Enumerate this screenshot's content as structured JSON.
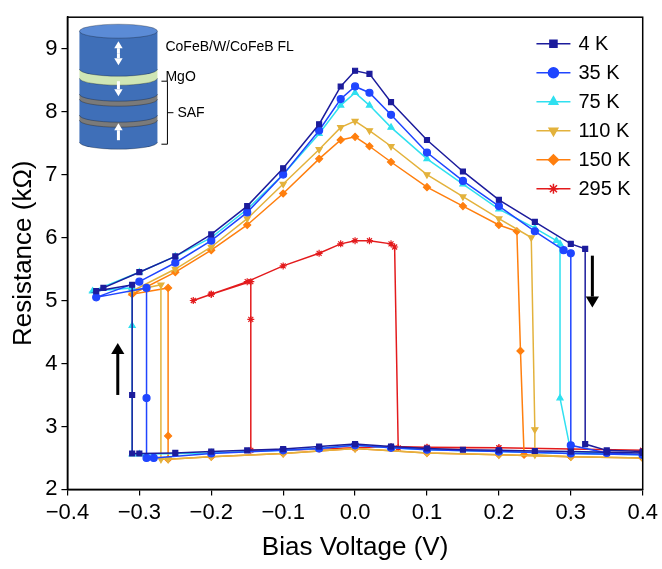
{
  "chart_data": {
    "type": "line",
    "x_label": "Bias Voltage (V)",
    "y_label": "Resistance (kΩ)",
    "xlim": [
      -0.4,
      0.4
    ],
    "xticks": [
      {
        "value": -0.4,
        "label": "−0.4"
      },
      {
        "value": -0.3,
        "label": "−0.3"
      },
      {
        "value": -0.2,
        "label": "−0.2"
      },
      {
        "value": -0.1,
        "label": "−0.1"
      },
      {
        "value": 0,
        "label": "0.0"
      },
      {
        "value": 0.1,
        "label": "0.1"
      },
      {
        "value": 0.2,
        "label": "0.2"
      },
      {
        "value": 0.3,
        "label": "0.3"
      },
      {
        "value": 0.4,
        "label": "0.4"
      }
    ],
    "ylim": [
      2,
      9.5
    ],
    "yticks": [
      2,
      3,
      4,
      5,
      6,
      7,
      8,
      9
    ],
    "grid": false,
    "legend": "upper right",
    "annotations": [
      {
        "text": "CoFeB/W/CoFeB FL"
      },
      {
        "text": "MgO"
      },
      {
        "text": "SAF"
      }
    ],
    "series": [
      {
        "name": "4 K",
        "color": "#1c1c9c",
        "marker": "square",
        "line_style": "solid",
        "x": [
          0.4,
          0.35,
          0.3,
          0.25,
          0.2,
          0.15,
          0.1,
          0.05,
          0.0,
          -0.05,
          -0.1,
          -0.15,
          -0.2,
          -0.25,
          -0.3,
          -0.31,
          -0.31,
          -0.31,
          -0.36,
          -0.35,
          -0.3,
          -0.25,
          -0.2,
          -0.15,
          -0.1,
          -0.05,
          -0.02,
          0.0,
          0.02,
          0.05,
          0.1,
          0.15,
          0.2,
          0.25,
          0.3,
          0.32,
          0.32,
          0.35,
          0.4
        ],
        "values": [
          2.58,
          2.59,
          2.6,
          2.61,
          2.62,
          2.63,
          2.65,
          2.68,
          2.72,
          2.68,
          2.64,
          2.62,
          2.6,
          2.58,
          2.57,
          2.57,
          3.5,
          5.25,
          5.15,
          5.2,
          5.45,
          5.7,
          6.05,
          6.5,
          7.1,
          7.8,
          8.4,
          8.65,
          8.6,
          8.15,
          7.55,
          7.05,
          6.6,
          6.25,
          5.9,
          5.82,
          2.72,
          2.62,
          2.6
        ]
      },
      {
        "name": "35 K",
        "color": "#1f45ff",
        "marker": "circle",
        "line_style": "solid",
        "x": [
          0.4,
          0.3,
          0.2,
          0.1,
          0.05,
          0.0,
          -0.05,
          -0.1,
          -0.2,
          -0.28,
          -0.29,
          -0.29,
          -0.29,
          -0.36,
          -0.3,
          -0.25,
          -0.2,
          -0.15,
          -0.1,
          -0.05,
          -0.02,
          0.0,
          0.02,
          0.05,
          0.1,
          0.15,
          0.2,
          0.25,
          0.29,
          0.3,
          0.3,
          0.35,
          0.4
        ],
        "values": [
          2.55,
          2.57,
          2.6,
          2.63,
          2.66,
          2.7,
          2.65,
          2.62,
          2.57,
          2.5,
          2.5,
          3.45,
          5.2,
          5.05,
          5.3,
          5.6,
          5.95,
          6.4,
          7.0,
          7.7,
          8.2,
          8.4,
          8.3,
          7.95,
          7.35,
          6.9,
          6.5,
          6.1,
          5.8,
          5.75,
          2.7,
          2.58,
          2.55
        ]
      },
      {
        "name": "75 K",
        "color": "#2fe0f0",
        "marker": "triangle-up",
        "line_style": "solid",
        "x": [
          0.4,
          0.3,
          0.2,
          0.1,
          0.05,
          0.0,
          -0.05,
          -0.1,
          -0.2,
          -0.3,
          -0.31,
          -0.31,
          -0.31,
          -0.365,
          -0.3,
          -0.25,
          -0.2,
          -0.15,
          -0.1,
          -0.05,
          -0.02,
          0.0,
          0.02,
          0.05,
          0.1,
          0.15,
          0.2,
          0.25,
          0.28,
          0.285,
          0.285,
          0.3,
          0.4
        ],
        "values": [
          2.55,
          2.57,
          2.6,
          2.63,
          2.66,
          2.7,
          2.65,
          2.62,
          2.58,
          2.56,
          2.56,
          4.6,
          5.2,
          5.15,
          5.45,
          5.7,
          6.0,
          6.45,
          7.0,
          7.65,
          8.1,
          8.3,
          8.1,
          7.75,
          7.25,
          6.85,
          6.45,
          6.15,
          5.95,
          5.9,
          3.45,
          2.6,
          2.55
        ]
      },
      {
        "name": "110 K",
        "color": "#e3b23c",
        "marker": "triangle-down",
        "line_style": "solid",
        "x": [
          0.4,
          0.3,
          0.2,
          0.1,
          0.0,
          -0.1,
          -0.2,
          -0.26,
          -0.27,
          -0.27,
          -0.31,
          -0.25,
          -0.2,
          -0.15,
          -0.1,
          -0.05,
          -0.02,
          0.0,
          0.02,
          0.05,
          0.1,
          0.15,
          0.2,
          0.245,
          0.25,
          0.25,
          0.3,
          0.4
        ],
        "values": [
          2.5,
          2.52,
          2.55,
          2.58,
          2.65,
          2.57,
          2.52,
          2.48,
          2.48,
          5.25,
          5.15,
          5.5,
          5.85,
          6.3,
          6.85,
          7.4,
          7.75,
          7.85,
          7.7,
          7.45,
          7.0,
          6.65,
          6.3,
          6.0,
          2.95,
          2.55,
          2.52,
          2.5
        ]
      },
      {
        "name": "150 K",
        "color": "#ff7f0e",
        "marker": "diamond",
        "line_style": "solid",
        "x": [
          0.4,
          0.3,
          0.2,
          0.1,
          0.0,
          -0.1,
          -0.2,
          -0.26,
          -0.26,
          -0.26,
          -0.31,
          -0.25,
          -0.2,
          -0.15,
          -0.1,
          -0.05,
          -0.02,
          0.0,
          0.02,
          0.05,
          0.1,
          0.15,
          0.2,
          0.225,
          0.23,
          0.235,
          0.3,
          0.4
        ],
        "values": [
          2.5,
          2.52,
          2.55,
          2.58,
          2.65,
          2.57,
          2.52,
          2.48,
          2.85,
          5.2,
          5.1,
          5.45,
          5.8,
          6.2,
          6.7,
          7.25,
          7.55,
          7.6,
          7.45,
          7.2,
          6.8,
          6.5,
          6.2,
          6.1,
          4.2,
          2.55,
          2.52,
          2.5
        ]
      },
      {
        "name": "295 K",
        "color": "#e31a1c",
        "marker": "star",
        "line_style": "solid",
        "x": [
          0.4,
          0.3,
          0.2,
          0.1,
          0.05,
          0.0,
          -0.05,
          -0.1,
          -0.145,
          -0.145,
          -0.145,
          -0.2,
          -0.225,
          -0.2,
          -0.15,
          -0.1,
          -0.05,
          -0.02,
          0.0,
          0.02,
          0.05,
          0.055,
          0.06,
          0.1,
          0.2,
          0.3,
          0.4
        ],
        "values": [
          2.62,
          2.64,
          2.66,
          2.67,
          2.68,
          2.66,
          2.64,
          2.62,
          2.62,
          4.7,
          5.3,
          5.1,
          5.0,
          5.1,
          5.3,
          5.55,
          5.75,
          5.9,
          5.95,
          5.95,
          5.9,
          5.85,
          2.66,
          2.66,
          2.66,
          2.64,
          2.62
        ]
      }
    ]
  }
}
